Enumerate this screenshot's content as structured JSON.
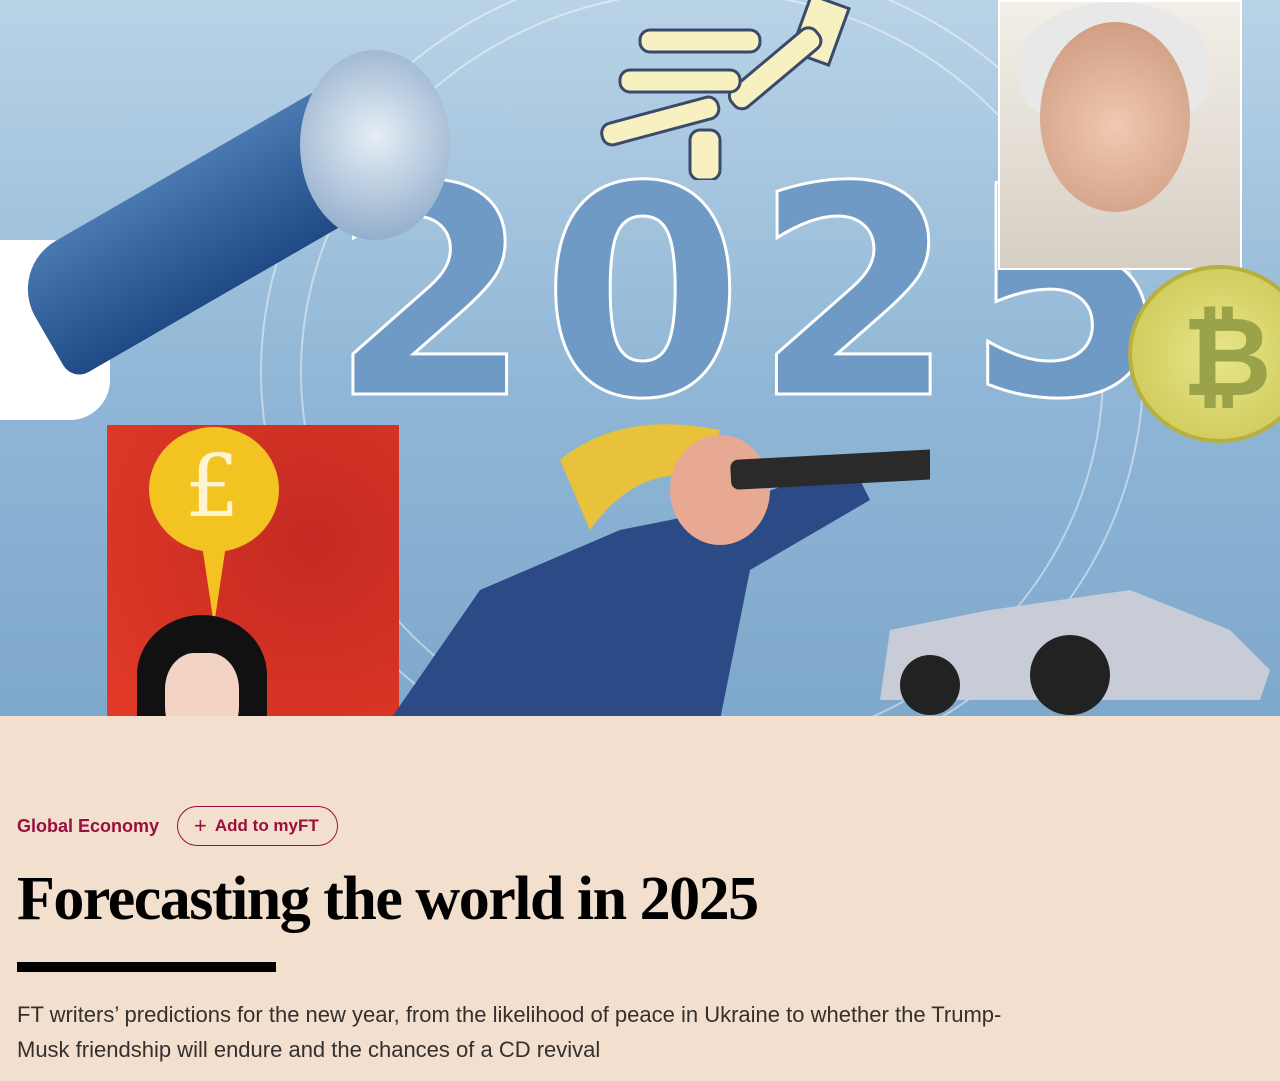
{
  "illustration": {
    "year_lettering": "2025",
    "coin_symbol": "₿",
    "bubble_symbol": "£",
    "background_color": "#8fb6d6"
  },
  "article": {
    "topic": "Global Economy",
    "myft_button": {
      "icon": "plus-icon",
      "symbol": "+",
      "label": "Add to myFT"
    },
    "title": "Forecasting the world in 2025",
    "standfirst": "FT writers’ predictions for the new year, from the likelihood of peace in Ukraine to whether the Trump-Musk friendship will endure and the chances of a CD revival"
  },
  "colors": {
    "accent": "#990f3d",
    "page_background": "#f2dfce",
    "text": "#33302e"
  }
}
